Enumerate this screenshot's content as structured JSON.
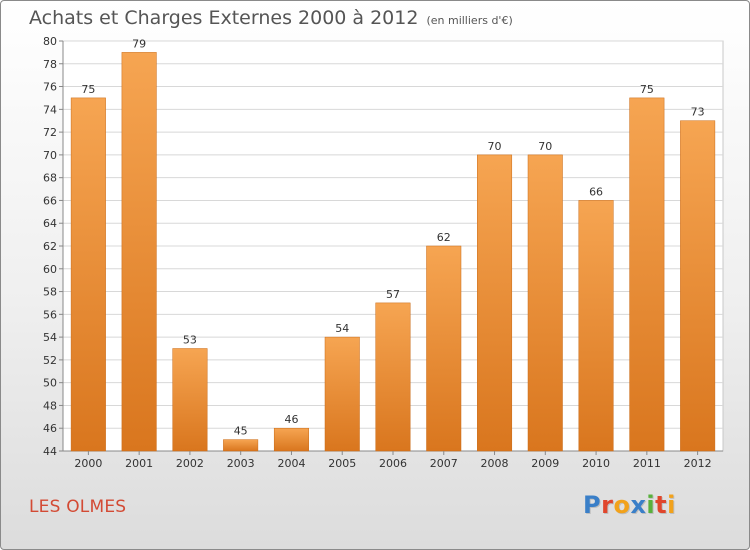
{
  "chart_data": {
    "type": "bar",
    "title": "Achats et Charges Externes 2000 à 2012",
    "subtitle": "(en milliers d'€)",
    "categories": [
      "2000",
      "2001",
      "2002",
      "2003",
      "2004",
      "2005",
      "2006",
      "2007",
      "2008",
      "2009",
      "2010",
      "2011",
      "2012"
    ],
    "values": [
      75,
      79,
      53,
      45,
      46,
      54,
      57,
      62,
      70,
      70,
      66,
      75,
      73
    ],
    "ylim": [
      44,
      80
    ],
    "yticks": [
      44,
      46,
      48,
      50,
      52,
      54,
      56,
      58,
      60,
      62,
      64,
      66,
      68,
      70,
      72,
      74,
      76,
      78,
      80
    ],
    "xlabel": "",
    "ylabel": "",
    "grid": true,
    "bar_color_top": "#f6a552",
    "bar_color_bottom": "#d9761e"
  },
  "footer": {
    "city": "LES OLMES",
    "logo_letters": [
      "P",
      "r",
      "o",
      "x",
      "i",
      "t",
      "i"
    ],
    "logo_colors": [
      "#3a7fc8",
      "#e0462c",
      "#f2a21b",
      "#3a7fc8",
      "#59b03c",
      "#e0462c",
      "#f2a21b"
    ]
  }
}
